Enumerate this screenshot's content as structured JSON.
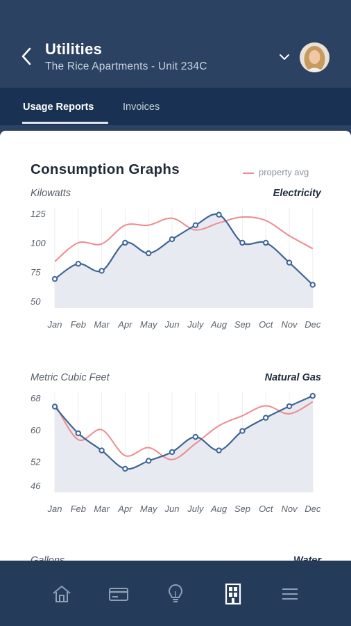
{
  "header": {
    "title": "Utilities",
    "subtitle": "The Rice Apartments - Unit 234C"
  },
  "tabs": [
    {
      "label": "Usage Reports",
      "active": true
    },
    {
      "label": "Invoices",
      "active": false
    }
  ],
  "card": {
    "title": "Consumption Graphs",
    "legend_label": "property avg"
  },
  "chart_data": [
    {
      "type": "line",
      "ylabel": "Kilowatts",
      "utility": "Electricity",
      "x": [
        "Jan",
        "Feb",
        "Mar",
        "Apr",
        "May",
        "Jun",
        "July",
        "Aug",
        "Sep",
        "Oct",
        "Nov",
        "Dec"
      ],
      "yticks": [
        125,
        100,
        75,
        50
      ],
      "ylim": [
        50,
        125
      ],
      "series": [
        {
          "key": "unit",
          "color": "#3d6496",
          "values": [
            69,
            82,
            76,
            100,
            91,
            103,
            115,
            124,
            100,
            100,
            83,
            64
          ]
        },
        {
          "key": "avg",
          "name": "property avg",
          "color": "#ef8a8f",
          "values": [
            84,
            100,
            99,
            115,
            115,
            121,
            111,
            117,
            122,
            119,
            106,
            95
          ]
        }
      ]
    },
    {
      "type": "line",
      "ylabel": "Metric Cubic Feet",
      "utility": "Natural Gas",
      "x": [
        "Jan",
        "Feb",
        "Mar",
        "Apr",
        "May",
        "Jun",
        "July",
        "Aug",
        "Sep",
        "Oct",
        "Nov",
        "Dec"
      ],
      "yticks": [
        68,
        60,
        52,
        46
      ],
      "ylim": [
        46,
        68
      ],
      "series": [
        {
          "key": "unit",
          "color": "#3d6496",
          "values": [
            65.8,
            59.1,
            54.8,
            50.2,
            52.2,
            54.4,
            58.2,
            54.8,
            59.7,
            63.0,
            65.9,
            68.5
          ]
        },
        {
          "key": "avg",
          "name": "property avg",
          "color": "#ef8a8f",
          "values": [
            66.5,
            57.5,
            60.0,
            53.5,
            55.5,
            52.5,
            56.5,
            61.0,
            63.5,
            66.0,
            64.0,
            67.0
          ]
        }
      ]
    }
  ],
  "partial": {
    "ylabel": "Gallons",
    "utility": "Water"
  },
  "nav": [
    "home-icon",
    "card-icon",
    "bulb-icon",
    "building-icon",
    "menu-icon"
  ]
}
